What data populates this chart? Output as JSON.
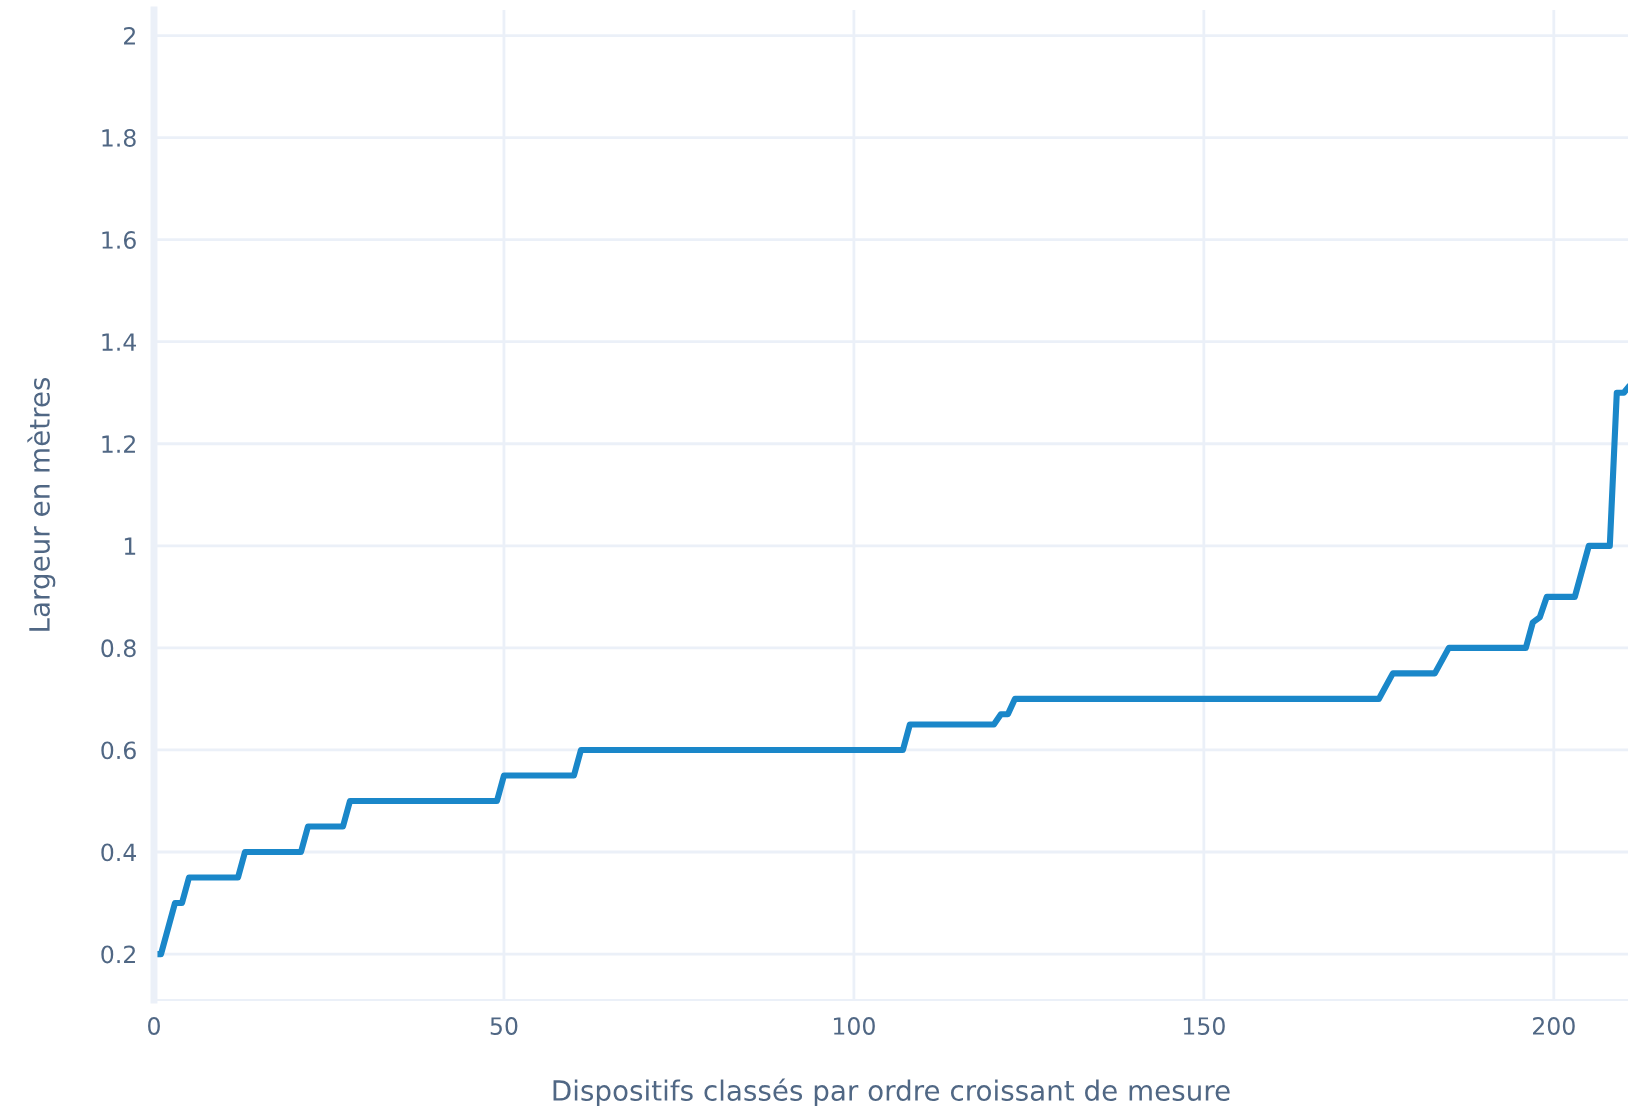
{
  "chart_data": {
    "type": "line",
    "xlabel": "Dispositifs classés par ordre croissant de mesure",
    "ylabel": "Largeur en mètres",
    "x": [
      0,
      1,
      3,
      4,
      5,
      12,
      13,
      21,
      22,
      27,
      28,
      49,
      50,
      60,
      61,
      107,
      108,
      120,
      121,
      122,
      123,
      175,
      177,
      183,
      185,
      196,
      197,
      198,
      199,
      203,
      205,
      208,
      209,
      210,
      210.6
    ],
    "series": [
      {
        "color": "#1a87c9",
        "values": [
          0.2,
          0.2,
          0.3,
          0.3,
          0.35,
          0.35,
          0.4,
          0.4,
          0.45,
          0.45,
          0.5,
          0.5,
          0.55,
          0.55,
          0.6,
          0.6,
          0.65,
          0.65,
          0.67,
          0.67,
          0.7,
          0.7,
          0.75,
          0.75,
          0.8,
          0.8,
          0.85,
          0.86,
          0.9,
          0.9,
          1.0,
          1.0,
          1.3,
          1.3,
          1.31
        ]
      }
    ],
    "xlim": [
      0,
      210.6
    ],
    "ylim": [
      0.11,
      2.05
    ],
    "xticks": [
      0,
      50,
      100,
      150,
      200
    ],
    "yticks": [
      0.2,
      0.4,
      0.6,
      0.8,
      1,
      1.2,
      1.4,
      1.6,
      1.8,
      2
    ],
    "grid": true,
    "marker": "none",
    "line_style": "solid"
  }
}
